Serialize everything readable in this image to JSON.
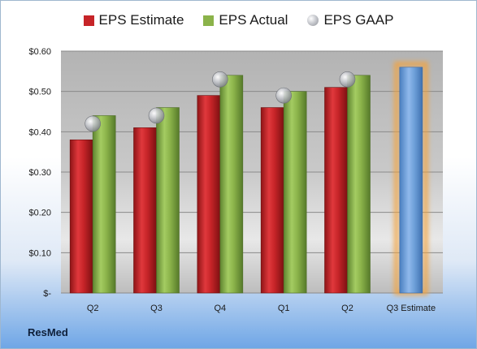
{
  "company": "ResMed",
  "legend": [
    {
      "label": "EPS Estimate",
      "color": "#c62428"
    },
    {
      "label": "EPS Actual",
      "color": "#8bb34a"
    },
    {
      "label": "EPS GAAP",
      "color": "#b9bcc2"
    }
  ],
  "chart_data": {
    "type": "bar",
    "categories": [
      "Q2",
      "Q3",
      "Q4",
      "Q1",
      "Q2",
      "Q3 Estimate"
    ],
    "series": [
      {
        "name": "EPS Estimate",
        "values": [
          0.38,
          0.41,
          0.49,
          0.46,
          0.51,
          0.56
        ]
      },
      {
        "name": "EPS Actual",
        "values": [
          0.44,
          0.46,
          0.54,
          0.5,
          0.54,
          null
        ]
      },
      {
        "name": "EPS GAAP",
        "values": [
          0.42,
          0.44,
          0.53,
          0.49,
          0.53,
          null
        ]
      }
    ],
    "ylim": [
      0,
      0.6
    ],
    "yticks": [
      {
        "value": 0,
        "label": "$-"
      },
      {
        "value": 0.1,
        "label": "$0.10"
      },
      {
        "value": 0.2,
        "label": "$0.20"
      },
      {
        "value": 0.3,
        "label": "$0.30"
      },
      {
        "value": 0.4,
        "label": "$0.40"
      },
      {
        "value": 0.5,
        "label": "$0.50"
      },
      {
        "value": 0.6,
        "label": "$0.60"
      }
    ],
    "estimate_bar_color": "#6d9fd8",
    "estimate_glow_color": "#f4a23c",
    "grid": true,
    "legend_position": "top"
  }
}
